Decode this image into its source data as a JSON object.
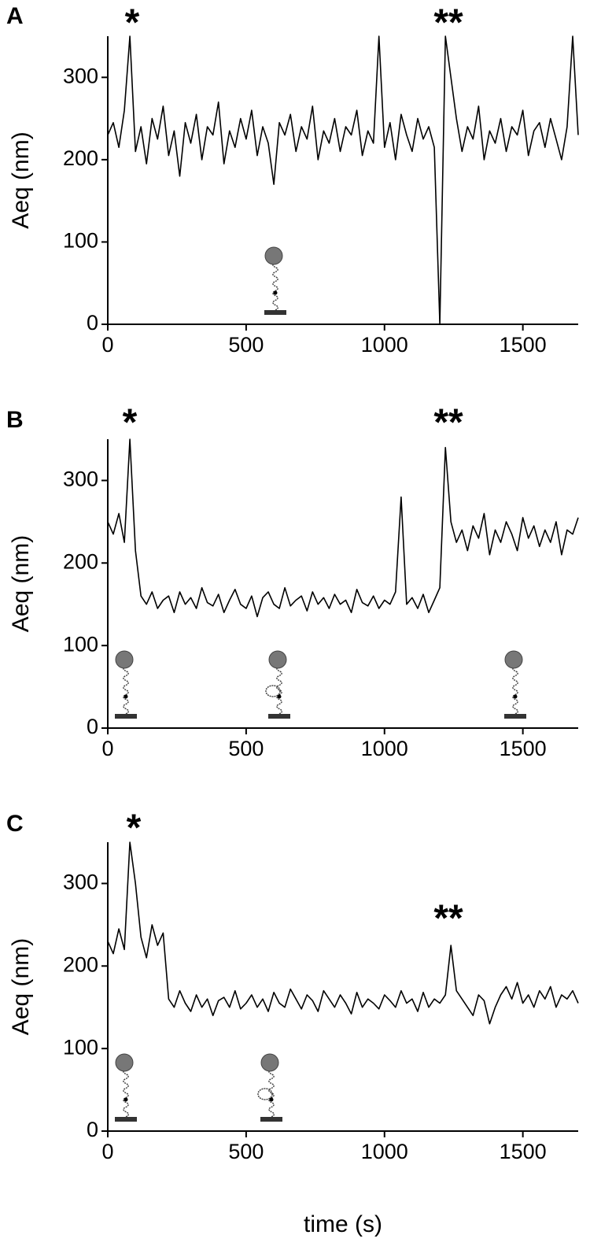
{
  "chart_data": [
    {
      "type": "line",
      "panel_label": "A",
      "annotations": [
        "*",
        "**"
      ],
      "y_label": "Aeq (nm)",
      "x": [
        0,
        20,
        40,
        60,
        80,
        100,
        120,
        140,
        160,
        180,
        200,
        220,
        240,
        260,
        280,
        300,
        320,
        340,
        360,
        380,
        400,
        420,
        440,
        460,
        480,
        500,
        520,
        540,
        560,
        580,
        600,
        620,
        640,
        660,
        680,
        700,
        720,
        740,
        760,
        780,
        800,
        820,
        840,
        860,
        880,
        900,
        920,
        940,
        960,
        980,
        1000,
        1020,
        1040,
        1060,
        1080,
        1100,
        1120,
        1140,
        1160,
        1180,
        1200,
        1220,
        1240,
        1260,
        1280,
        1300,
        1320,
        1340,
        1360,
        1380,
        1400,
        1420,
        1440,
        1460,
        1480,
        1500,
        1520,
        1540,
        1560,
        1580,
        1600,
        1620,
        1640,
        1660,
        1680,
        1700
      ],
      "series": [
        {
          "color": "#000000",
          "values": [
            230,
            245,
            215,
            260,
            350,
            210,
            240,
            195,
            250,
            225,
            265,
            205,
            235,
            180,
            245,
            220,
            255,
            200,
            240,
            230,
            270,
            195,
            235,
            215,
            250,
            225,
            260,
            205,
            240,
            220,
            170,
            245,
            230,
            255,
            210,
            240,
            225,
            265,
            200,
            235,
            220,
            250,
            210,
            240,
            230,
            260,
            205,
            235,
            220,
            350,
            215,
            245,
            200,
            255,
            230,
            210,
            250,
            225,
            240,
            215,
            0,
            350,
            300,
            250,
            210,
            240,
            225,
            265,
            200,
            235,
            220,
            250,
            210,
            240,
            230,
            260,
            205,
            235,
            245,
            215,
            250,
            225,
            200,
            240,
            350,
            230
          ]
        }
      ],
      "xlim": [
        0,
        1700
      ],
      "ylim": [
        0,
        350
      ],
      "xticks": [
        0,
        500,
        1000,
        1500
      ],
      "yticks": [
        0,
        100,
        200,
        300
      ]
    },
    {
      "type": "line",
      "panel_label": "B",
      "annotations": [
        "*",
        "**"
      ],
      "y_label": "Aeq (nm)",
      "x": [
        0,
        20,
        40,
        60,
        80,
        100,
        120,
        140,
        160,
        180,
        200,
        220,
        240,
        260,
        280,
        300,
        320,
        340,
        360,
        380,
        400,
        420,
        440,
        460,
        480,
        500,
        520,
        540,
        560,
        580,
        600,
        620,
        640,
        660,
        680,
        700,
        720,
        740,
        760,
        780,
        800,
        820,
        840,
        860,
        880,
        900,
        920,
        940,
        960,
        980,
        1000,
        1020,
        1040,
        1060,
        1080,
        1100,
        1120,
        1140,
        1160,
        1180,
        1200,
        1220,
        1240,
        1260,
        1280,
        1300,
        1320,
        1340,
        1360,
        1380,
        1400,
        1420,
        1440,
        1460,
        1480,
        1500,
        1520,
        1540,
        1560,
        1580,
        1600,
        1620,
        1640,
        1660,
        1680,
        1700
      ],
      "series": [
        {
          "color": "#000000",
          "values": [
            250,
            235,
            260,
            225,
            350,
            215,
            160,
            150,
            165,
            145,
            155,
            160,
            140,
            165,
            150,
            158,
            145,
            170,
            152,
            148,
            162,
            140,
            155,
            168,
            150,
            145,
            160,
            135,
            158,
            165,
            150,
            145,
            170,
            148,
            155,
            160,
            142,
            165,
            150,
            158,
            145,
            162,
            150,
            155,
            140,
            168,
            152,
            148,
            160,
            145,
            155,
            150,
            165,
            280,
            150,
            158,
            145,
            162,
            140,
            155,
            170,
            340,
            250,
            225,
            240,
            215,
            245,
            230,
            260,
            210,
            240,
            225,
            250,
            235,
            215,
            255,
            230,
            245,
            220,
            240,
            225,
            250,
            210,
            240,
            235,
            255
          ]
        }
      ],
      "xlim": [
        0,
        1700
      ],
      "ylim": [
        0,
        350
      ],
      "xticks": [
        0,
        500,
        1000,
        1500
      ],
      "yticks": [
        0,
        100,
        200,
        300
      ]
    },
    {
      "type": "line",
      "panel_label": "C",
      "annotations": [
        "*",
        "**"
      ],
      "y_label": "Aeq (nm)",
      "x_label": "time (s)",
      "x": [
        0,
        20,
        40,
        60,
        80,
        100,
        120,
        140,
        160,
        180,
        200,
        220,
        240,
        260,
        280,
        300,
        320,
        340,
        360,
        380,
        400,
        420,
        440,
        460,
        480,
        500,
        520,
        540,
        560,
        580,
        600,
        620,
        640,
        660,
        680,
        700,
        720,
        740,
        760,
        780,
        800,
        820,
        840,
        860,
        880,
        900,
        920,
        940,
        960,
        980,
        1000,
        1020,
        1040,
        1060,
        1080,
        1100,
        1120,
        1140,
        1160,
        1180,
        1200,
        1220,
        1240,
        1260,
        1280,
        1300,
        1320,
        1340,
        1360,
        1380,
        1400,
        1420,
        1440,
        1460,
        1480,
        1500,
        1520,
        1540,
        1560,
        1580,
        1600,
        1620,
        1640,
        1660,
        1680,
        1700
      ],
      "series": [
        {
          "color": "#000000",
          "values": [
            230,
            215,
            245,
            220,
            350,
            300,
            235,
            210,
            250,
            225,
            240,
            160,
            150,
            170,
            155,
            145,
            165,
            150,
            160,
            140,
            158,
            162,
            150,
            170,
            148,
            155,
            165,
            150,
            160,
            145,
            168,
            155,
            150,
            172,
            160,
            148,
            165,
            158,
            145,
            170,
            160,
            150,
            165,
            155,
            142,
            168,
            150,
            160,
            155,
            148,
            165,
            158,
            150,
            170,
            155,
            160,
            145,
            168,
            150,
            160,
            155,
            165,
            225,
            170,
            160,
            150,
            140,
            165,
            158,
            130,
            150,
            165,
            175,
            160,
            180,
            155,
            165,
            150,
            170,
            160,
            175,
            150,
            165,
            160,
            170,
            155
          ]
        }
      ],
      "xlim": [
        0,
        1700
      ],
      "ylim": [
        0,
        350
      ],
      "xticks": [
        0,
        500,
        1000,
        1500
      ],
      "yticks": [
        0,
        100,
        200,
        300
      ]
    }
  ]
}
